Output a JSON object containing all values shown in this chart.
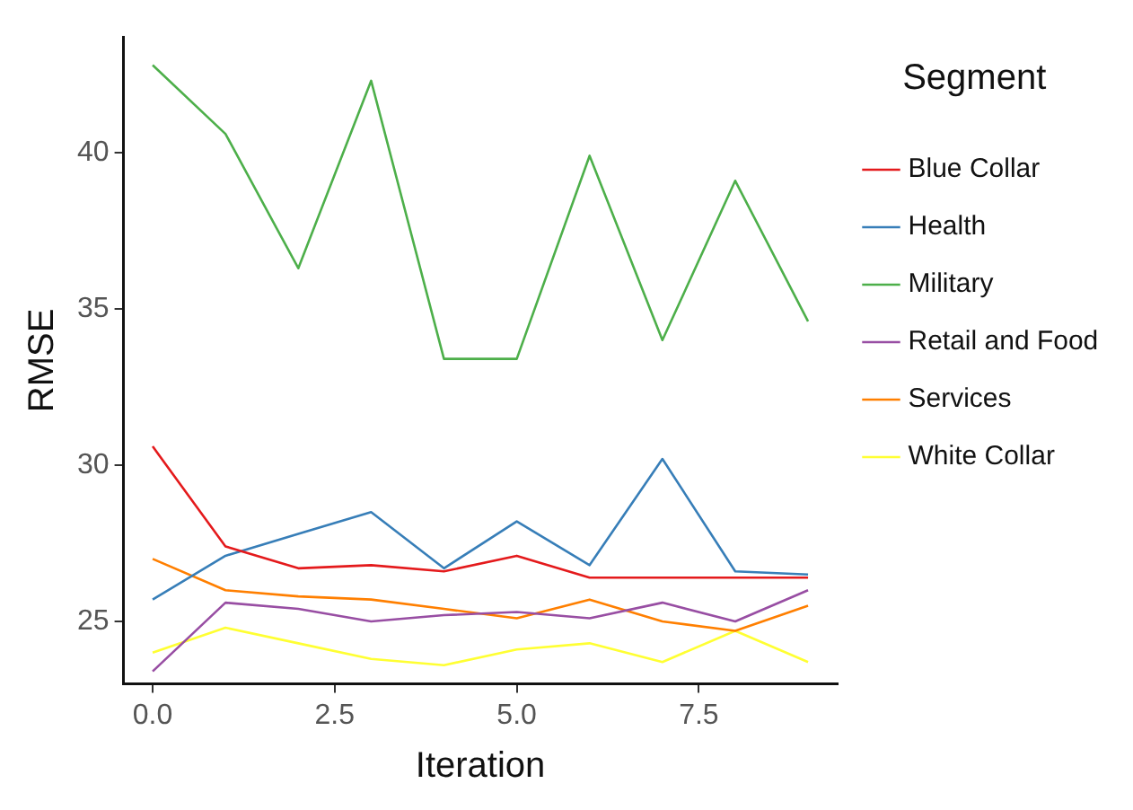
{
  "chart_data": {
    "type": "line",
    "xlabel": "Iteration",
    "ylabel": "RMSE",
    "legend_title": "Segment",
    "legend": "right",
    "grid": false,
    "marker": "none",
    "line_style": "solid",
    "x": [
      0,
      1,
      2,
      3,
      4,
      5,
      6,
      7,
      8,
      9
    ],
    "xlim": [
      -0.4,
      9.4
    ],
    "xticks": [
      {
        "value": 0,
        "label": "0.0"
      },
      {
        "value": 2.5,
        "label": "2.5"
      },
      {
        "value": 5,
        "label": "5.0"
      },
      {
        "value": 7.5,
        "label": "7.5"
      }
    ],
    "ylim": [
      23,
      43.7
    ],
    "yticks": [
      25,
      30,
      35,
      40
    ],
    "series": [
      {
        "name": "Blue Collar",
        "color": "#e41a1c",
        "values": [
          30.6,
          27.4,
          26.7,
          26.8,
          26.6,
          27.1,
          26.4,
          26.4,
          26.4,
          26.4
        ]
      },
      {
        "name": "Health",
        "color": "#377eb8",
        "values": [
          25.7,
          27.1,
          27.8,
          28.5,
          26.7,
          28.2,
          26.8,
          30.2,
          26.6,
          26.5
        ]
      },
      {
        "name": "Military",
        "color": "#4daf4a",
        "values": [
          42.8,
          40.6,
          36.3,
          42.3,
          33.4,
          33.4,
          39.9,
          34.0,
          39.1,
          34.6
        ]
      },
      {
        "name": "Retail and Food",
        "color": "#984ea3",
        "values": [
          23.4,
          25.6,
          25.4,
          25.0,
          25.2,
          25.3,
          25.1,
          25.6,
          25.0,
          26.0
        ]
      },
      {
        "name": "Services",
        "color": "#ff7f00",
        "values": [
          27.0,
          26.0,
          25.8,
          25.7,
          25.4,
          25.1,
          25.7,
          25.0,
          24.7,
          25.5
        ]
      },
      {
        "name": "White Collar",
        "color": "#ffff33",
        "values": [
          24.0,
          24.8,
          24.3,
          23.8,
          23.6,
          24.1,
          24.3,
          23.7,
          24.7,
          23.7
        ]
      }
    ]
  }
}
